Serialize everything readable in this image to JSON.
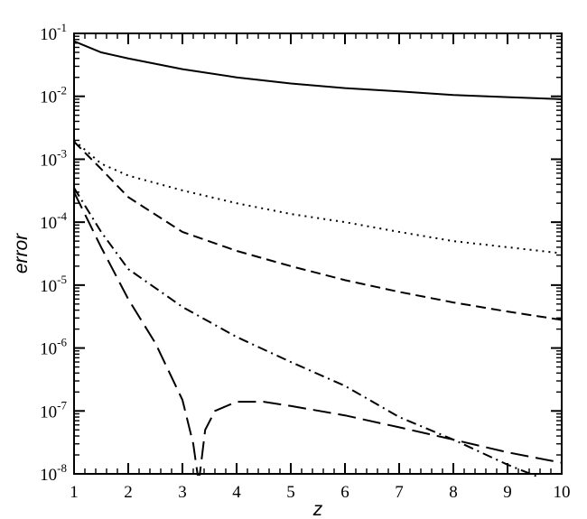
{
  "chart_data": {
    "type": "line",
    "title": "",
    "xlabel": "z",
    "ylabel": "error",
    "xlim": [
      1,
      10
    ],
    "ylim": [
      1e-08,
      0.1
    ],
    "yscale": "log",
    "grid": false,
    "legend": "none",
    "x_ticks": [
      "1",
      "2",
      "3",
      "4",
      "5",
      "6",
      "7",
      "8",
      "9",
      "10"
    ],
    "y_ticks": [
      {
        "base": "10",
        "exp": "-8",
        "value": 1e-08
      },
      {
        "base": "10",
        "exp": "-7",
        "value": 1e-07
      },
      {
        "base": "10",
        "exp": "-6",
        "value": 1e-06
      },
      {
        "base": "10",
        "exp": "-5",
        "value": 1e-05
      },
      {
        "base": "10",
        "exp": "-4",
        "value": 0.0001
      },
      {
        "base": "10",
        "exp": "-3",
        "value": 0.001
      },
      {
        "base": "10",
        "exp": "-2",
        "value": 0.01
      },
      {
        "base": "10",
        "exp": "-1",
        "value": 0.1
      }
    ],
    "series": [
      {
        "style": "solid",
        "points": [
          [
            1,
            0.075
          ],
          [
            1.5,
            0.05
          ],
          [
            2,
            0.04
          ],
          [
            3,
            0.027
          ],
          [
            4,
            0.02
          ],
          [
            5,
            0.016
          ],
          [
            6,
            0.0135
          ],
          [
            7,
            0.012
          ],
          [
            8,
            0.0105
          ],
          [
            9,
            0.0097
          ],
          [
            10,
            0.009
          ]
        ]
      },
      {
        "style": "dotted",
        "points": [
          [
            1,
            0.002
          ],
          [
            1.5,
            0.00085
          ],
          [
            2,
            0.00055
          ],
          [
            3,
            0.00032
          ],
          [
            4,
            0.0002
          ],
          [
            5,
            0.000135
          ],
          [
            6,
            0.0001
          ],
          [
            7,
            7e-05
          ],
          [
            8,
            5e-05
          ],
          [
            9,
            4e-05
          ],
          [
            10,
            3.2e-05
          ]
        ]
      },
      {
        "style": "dashed",
        "points": [
          [
            1,
            0.0019
          ],
          [
            1.5,
            0.0007
          ],
          [
            2,
            0.00025
          ],
          [
            3,
            7e-05
          ],
          [
            4,
            3.5e-05
          ],
          [
            5,
            2e-05
          ],
          [
            6,
            1.2e-05
          ],
          [
            7,
            7.8e-06
          ],
          [
            8,
            5.3e-06
          ],
          [
            9,
            3.8e-06
          ],
          [
            10,
            2.8e-06
          ]
        ]
      },
      {
        "style": "dash-dot",
        "points": [
          [
            1,
            0.00035
          ],
          [
            1.5,
            7e-05
          ],
          [
            2,
            1.8e-05
          ],
          [
            3,
            4.5e-06
          ],
          [
            4,
            1.5e-06
          ],
          [
            5,
            6e-07
          ],
          [
            6,
            2.5e-07
          ],
          [
            7,
            8e-08
          ],
          [
            8,
            3.5e-08
          ],
          [
            9,
            1.4e-08
          ],
          [
            9.6,
            8.7e-09
          ]
        ]
      },
      {
        "style": "long-dash",
        "points": [
          [
            1,
            0.0003
          ],
          [
            1.5,
            4e-05
          ],
          [
            2,
            6e-06
          ],
          [
            2.5,
            1.2e-06
          ],
          [
            3,
            1.5e-07
          ],
          [
            3.2,
            3e-08
          ],
          [
            3.28,
            9.7e-09
          ],
          [
            3.32,
            9.7e-09
          ],
          [
            3.42,
            5e-08
          ],
          [
            3.6,
            1e-07
          ],
          [
            4,
            1.4e-07
          ],
          [
            4.5,
            1.4e-07
          ],
          [
            5,
            1.2e-07
          ],
          [
            6,
            8.5e-08
          ],
          [
            7,
            5.5e-08
          ],
          [
            8,
            3.5e-08
          ],
          [
            9,
            2.2e-08
          ],
          [
            10,
            1.5e-08
          ]
        ]
      }
    ]
  }
}
